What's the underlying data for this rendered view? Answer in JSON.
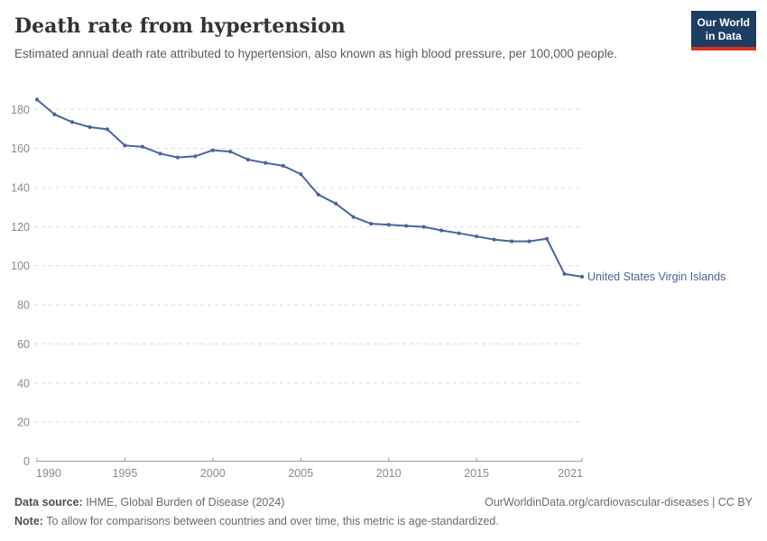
{
  "header": {
    "title": "Death rate from hypertension",
    "subtitle": "Estimated annual death rate attributed to hypertension, also known as high blood pressure, per 100,000 people.",
    "logo": {
      "line1": "Our World",
      "line2": "in Data",
      "bg_color": "#1d3d63",
      "accent_color": "#dc2f1e"
    }
  },
  "chart_data": {
    "type": "line",
    "title": "Death rate from hypertension",
    "xlabel": "",
    "ylabel": "",
    "grid": "horizontal-dashed",
    "legend_position": "end-of-line-label",
    "x_ticks": [
      1990,
      1995,
      2000,
      2005,
      2010,
      2015,
      2021
    ],
    "y_ticks": [
      0,
      20,
      40,
      60,
      80,
      100,
      120,
      140,
      160,
      180
    ],
    "xlim": [
      1990,
      2021
    ],
    "ylim": [
      0,
      180
    ],
    "colors": {
      "line": "#4a659b",
      "gridline": "#dcdcdc",
      "axis": "#9a9a9a",
      "tick_label": "#8a8a8a"
    },
    "x": [
      1990,
      1991,
      1992,
      1993,
      1994,
      1995,
      1996,
      1997,
      1998,
      1999,
      2000,
      2001,
      2002,
      2003,
      2004,
      2005,
      2006,
      2007,
      2008,
      2009,
      2010,
      2011,
      2012,
      2013,
      2014,
      2015,
      2016,
      2017,
      2018,
      2019,
      2020,
      2021
    ],
    "series": [
      {
        "name": "United States Virgin Islands",
        "color": "#4a659b",
        "values": [
          185.0,
          177.4,
          173.5,
          170.9,
          169.8,
          161.5,
          160.9,
          157.4,
          155.4,
          156.0,
          159.1,
          158.4,
          154.3,
          152.6,
          151.1,
          146.9,
          136.4,
          131.8,
          124.9,
          121.5,
          121.0,
          120.4,
          119.9,
          118.1,
          116.6,
          115.0,
          113.4,
          112.5,
          112.5,
          113.8,
          95.8,
          94.4
        ]
      }
    ]
  },
  "footer": {
    "data_source_label": "Data source:",
    "data_source_text": " IHME, Global Burden of Disease (2024)",
    "attribution": "OurWorldinData.org/cardiovascular-diseases | CC BY",
    "note_label": "Note:",
    "note_text": " To allow for comparisons between countries and over time, this metric is age-standardized."
  }
}
